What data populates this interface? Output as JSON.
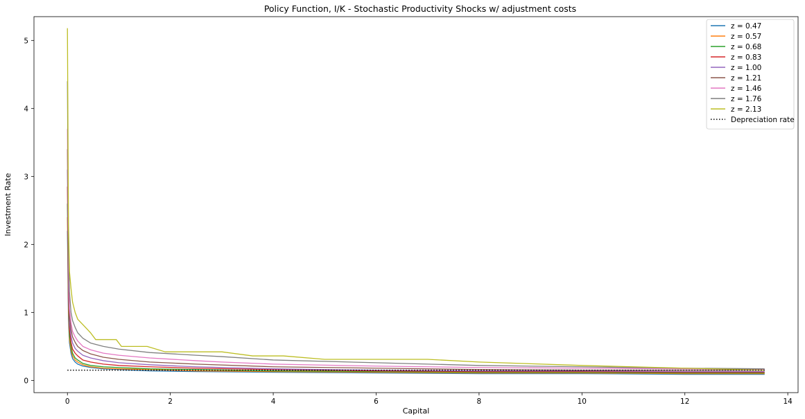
{
  "chart_data": {
    "type": "line",
    "title": "Policy Function, I/K - Stochastic Productivity Shocks w/ adjustment costs",
    "xlabel": "Capital",
    "ylabel": "Investment Rate",
    "xlim": [
      -0.65,
      14.2
    ],
    "ylim": [
      -0.18,
      5.35
    ],
    "xticks": [
      0,
      2,
      4,
      6,
      8,
      10,
      12,
      14
    ],
    "yticks": [
      0,
      1,
      2,
      3,
      4,
      5
    ],
    "grid": false,
    "legend_position": "top-right",
    "series": [
      {
        "name": "z = 0.47",
        "color": "#1f77b4",
        "dash": "solid",
        "x": [
          0.0,
          0.02,
          0.04,
          0.07,
          0.1,
          0.15,
          0.2,
          0.3,
          0.45,
          0.7,
          1.0,
          1.6,
          2.5,
          4.0,
          6.0,
          8.0,
          10.0,
          12.0,
          13.55
        ],
        "y": [
          2.2,
          0.9,
          0.55,
          0.4,
          0.32,
          0.27,
          0.24,
          0.21,
          0.19,
          0.17,
          0.16,
          0.14,
          0.13,
          0.12,
          0.11,
          0.1,
          0.1,
          0.09,
          0.09
        ]
      },
      {
        "name": "z = 0.57",
        "color": "#ff7f0e",
        "dash": "solid",
        "x": [
          0.0,
          0.02,
          0.04,
          0.07,
          0.1,
          0.15,
          0.2,
          0.3,
          0.45,
          0.7,
          1.0,
          1.6,
          2.5,
          4.0,
          6.0,
          8.0,
          10.0,
          12.0,
          13.55
        ],
        "y": [
          2.4,
          1.0,
          0.6,
          0.45,
          0.36,
          0.3,
          0.27,
          0.23,
          0.2,
          0.18,
          0.17,
          0.16,
          0.14,
          0.13,
          0.12,
          0.11,
          0.11,
          0.1,
          0.1
        ]
      },
      {
        "name": "z = 0.68",
        "color": "#2ca02c",
        "dash": "solid",
        "x": [
          0.0,
          0.02,
          0.04,
          0.07,
          0.1,
          0.15,
          0.2,
          0.3,
          0.45,
          0.7,
          1.0,
          1.6,
          2.5,
          4.0,
          6.0,
          8.0,
          10.0,
          12.0,
          13.55
        ],
        "y": [
          2.6,
          1.1,
          0.66,
          0.5,
          0.4,
          0.33,
          0.3,
          0.25,
          0.22,
          0.2,
          0.19,
          0.17,
          0.16,
          0.14,
          0.13,
          0.12,
          0.12,
          0.11,
          0.11
        ]
      },
      {
        "name": "z = 0.83",
        "color": "#d62728",
        "dash": "solid",
        "x": [
          0.0,
          0.02,
          0.04,
          0.07,
          0.1,
          0.15,
          0.2,
          0.3,
          0.45,
          0.7,
          1.0,
          1.6,
          2.5,
          4.0,
          6.0,
          8.0,
          10.0,
          12.0,
          13.55
        ],
        "y": [
          2.85,
          1.2,
          0.75,
          0.56,
          0.46,
          0.4,
          0.36,
          0.3,
          0.27,
          0.24,
          0.22,
          0.2,
          0.18,
          0.16,
          0.14,
          0.13,
          0.13,
          0.12,
          0.12
        ]
      },
      {
        "name": "z = 1.00",
        "color": "#9467bd",
        "dash": "solid",
        "x": [
          0.0,
          0.02,
          0.04,
          0.07,
          0.1,
          0.15,
          0.2,
          0.3,
          0.45,
          0.7,
          1.0,
          1.6,
          2.5,
          4.0,
          6.0,
          8.0,
          10.0,
          12.0,
          13.55
        ],
        "y": [
          3.1,
          1.35,
          0.85,
          0.65,
          0.55,
          0.47,
          0.43,
          0.37,
          0.33,
          0.29,
          0.26,
          0.23,
          0.2,
          0.17,
          0.15,
          0.14,
          0.14,
          0.13,
          0.13
        ]
      },
      {
        "name": "z = 1.21",
        "color": "#8c564b",
        "dash": "solid",
        "x": [
          0.0,
          0.02,
          0.04,
          0.07,
          0.1,
          0.15,
          0.2,
          0.3,
          0.45,
          0.7,
          1.0,
          1.6,
          2.5,
          4.0,
          6.0,
          8.0,
          10.0,
          12.0,
          13.55
        ],
        "y": [
          3.4,
          1.5,
          0.95,
          0.75,
          0.64,
          0.56,
          0.5,
          0.44,
          0.39,
          0.34,
          0.31,
          0.27,
          0.24,
          0.2,
          0.18,
          0.16,
          0.15,
          0.15,
          0.15
        ]
      },
      {
        "name": "z = 1.46",
        "color": "#e377c2",
        "dash": "solid",
        "x": [
          0.0,
          0.02,
          0.04,
          0.07,
          0.1,
          0.15,
          0.2,
          0.3,
          0.45,
          0.7,
          1.0,
          1.6,
          2.5,
          3.0,
          4.0,
          6.0,
          8.0,
          10.0,
          12.0,
          13.55
        ],
        "y": [
          3.7,
          1.65,
          1.05,
          0.85,
          0.72,
          0.64,
          0.58,
          0.5,
          0.45,
          0.4,
          0.37,
          0.33,
          0.29,
          0.27,
          0.24,
          0.21,
          0.19,
          0.18,
          0.17,
          0.16
        ]
      },
      {
        "name": "z = 1.76",
        "color": "#7f7f7f",
        "dash": "solid",
        "x": [
          0.0,
          0.02,
          0.04,
          0.07,
          0.1,
          0.15,
          0.2,
          0.3,
          0.45,
          0.7,
          1.0,
          1.6,
          2.5,
          3.0,
          4.0,
          6.0,
          8.0,
          10.0,
          12.0,
          13.55
        ],
        "y": [
          4.4,
          1.9,
          1.3,
          1.0,
          0.88,
          0.78,
          0.7,
          0.62,
          0.55,
          0.5,
          0.46,
          0.41,
          0.37,
          0.35,
          0.3,
          0.26,
          0.22,
          0.2,
          0.18,
          0.17
        ]
      },
      {
        "name": "z = 2.13",
        "color": "#bcbd22",
        "dash": "solid",
        "x": [
          0.0,
          0.02,
          0.04,
          0.07,
          0.1,
          0.15,
          0.2,
          0.3,
          0.45,
          0.55,
          0.95,
          1.05,
          1.55,
          1.9,
          3.0,
          3.6,
          4.2,
          5.0,
          7.0,
          8.0,
          10.0,
          12.0,
          13.55
        ],
        "y": [
          5.18,
          2.3,
          1.6,
          1.35,
          1.15,
          1.0,
          0.9,
          0.82,
          0.7,
          0.6,
          0.6,
          0.5,
          0.5,
          0.42,
          0.42,
          0.36,
          0.36,
          0.31,
          0.31,
          0.27,
          0.22,
          0.18,
          0.15
        ]
      },
      {
        "name": "Depreciation rate",
        "color": "#000000",
        "dash": "dotted",
        "x": [
          0.0,
          13.55
        ],
        "y": [
          0.15,
          0.15
        ]
      }
    ]
  }
}
